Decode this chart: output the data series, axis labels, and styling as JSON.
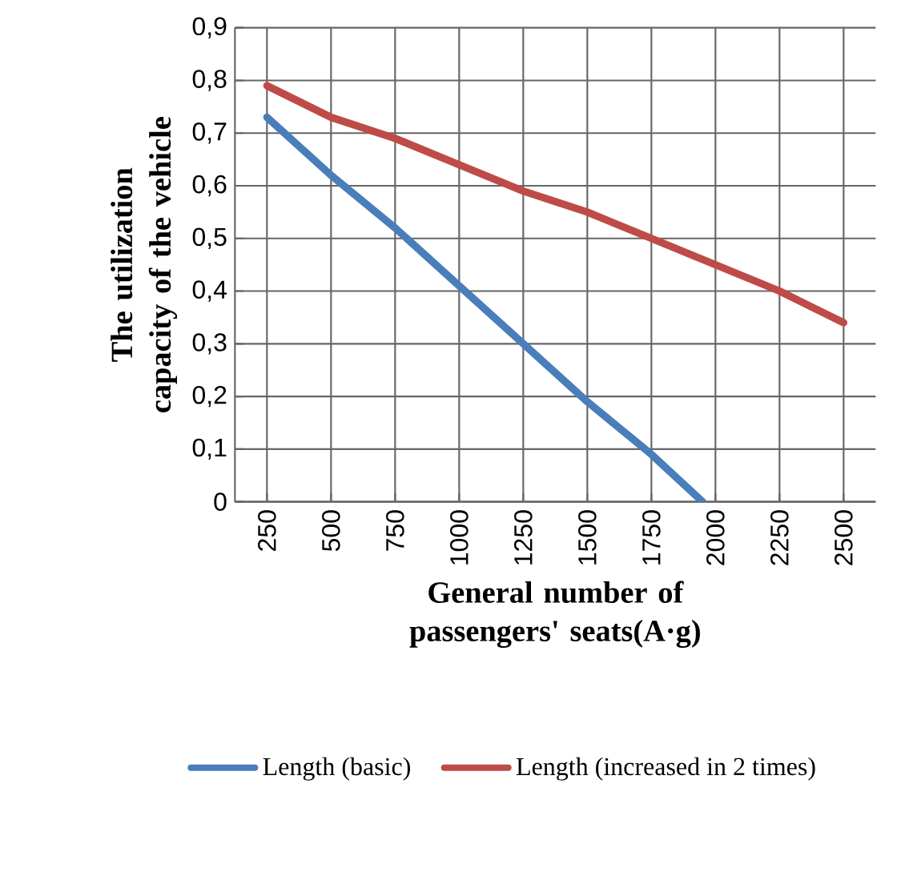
{
  "chart_data": {
    "type": "line",
    "xlabel": "General number of passengers' seats(A·g)",
    "ylabel": "The utilization capacity of the vehicle",
    "xlim": [
      125,
      2625
    ],
    "xticks": [
      250,
      500,
      750,
      1000,
      1250,
      1500,
      1750,
      2000,
      2250,
      2500
    ],
    "ylim": [
      0,
      0.9
    ],
    "yticks": [
      0,
      {
        "value": 0.1,
        "label": "0,1"
      },
      {
        "value": 0.2,
        "label": "0,2"
      },
      {
        "value": 0.3,
        "label": "0,3"
      },
      {
        "value": 0.4,
        "label": "0,4"
      },
      {
        "value": 0.5,
        "label": "0,5"
      },
      {
        "value": 0.6,
        "label": "0,6"
      },
      {
        "value": 0.7,
        "label": "0,7"
      },
      {
        "value": 0.8,
        "label": "0,8"
      },
      {
        "value": 0.9,
        "label": "0,9"
      }
    ],
    "grid": true,
    "legend": "bottom",
    "marker": "none",
    "line_style": "solid",
    "series": [
      {
        "name": "Length (basic)",
        "color": "#4a7ebb",
        "x": [
          250,
          500,
          750,
          1000,
          1250,
          1500,
          1750,
          1950
        ],
        "values": [
          0.73,
          0.62,
          0.52,
          0.41,
          0.3,
          0.19,
          0.09,
          0
        ]
      },
      {
        "name": "Length (increased in 2 times)",
        "color": "#be4b48",
        "x": [
          250,
          500,
          750,
          1000,
          1250,
          1500,
          1750,
          2000,
          2250,
          2500
        ],
        "values": [
          0.79,
          0.73,
          0.69,
          0.64,
          0.59,
          0.55,
          0.5,
          0.45,
          0.4,
          0.34
        ]
      }
    ]
  }
}
